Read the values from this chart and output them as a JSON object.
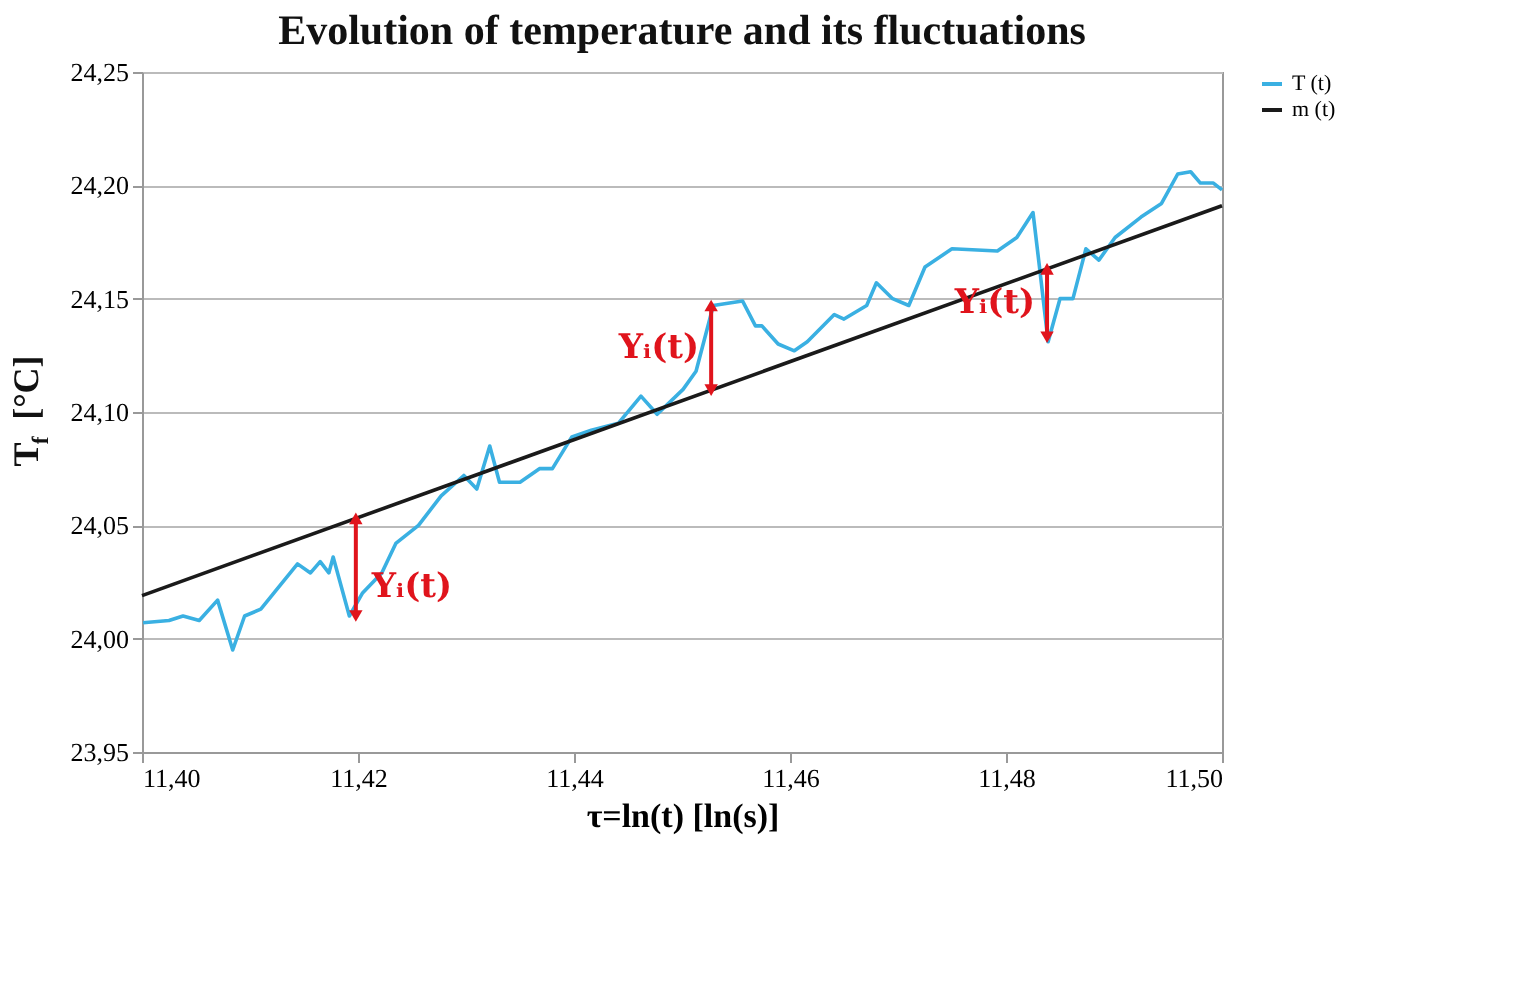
{
  "chart_data": {
    "type": "line",
    "title": "Evolution of temperature and its fluctuations",
    "xlabel": "τ=ln(t) [ln(s)]",
    "ylabel": "T$_{f}$ [°C]",
    "xlim": [
      11.4,
      11.5
    ],
    "xticks": [
      {
        "value": 11.4,
        "label": "11,40"
      },
      {
        "value": 11.42,
        "label": "11,42"
      },
      {
        "value": 11.44,
        "label": "11,44"
      },
      {
        "value": 11.46,
        "label": "11,46"
      },
      {
        "value": 11.48,
        "label": "11,48"
      },
      {
        "value": 11.5,
        "label": "11,50"
      }
    ],
    "ylim": [
      23.95,
      24.25
    ],
    "yticks": [
      {
        "value": 23.95,
        "label": "23,95"
      },
      {
        "value": 24.0,
        "label": "24,00"
      },
      {
        "value": 24.05,
        "label": "24,05"
      },
      {
        "value": 24.1,
        "label": "24,10"
      },
      {
        "value": 24.15,
        "label": "24,15"
      },
      {
        "value": 24.2,
        "label": "24,20"
      },
      {
        "value": 24.25,
        "label": "24,25"
      }
    ],
    "grid": "y",
    "legend": "right",
    "marker": "none",
    "line_style": "solid",
    "series": [
      {
        "name": "T (t)",
        "color": "#3ab0e2",
        "x": [
          11.4001,
          11.4025,
          11.4038,
          11.4053,
          11.407,
          11.4084,
          11.4095,
          11.411,
          11.4144,
          11.4156,
          11.4165,
          11.4173,
          11.4177,
          11.4192,
          11.4204,
          11.4222,
          11.4235,
          11.4256,
          11.4277,
          11.4298,
          11.431,
          11.4322,
          11.4331,
          11.435,
          11.4368,
          11.438,
          11.4398,
          11.4416,
          11.4441,
          11.4462,
          11.4477,
          11.4501,
          11.4513,
          11.4529,
          11.4556,
          11.4568,
          11.4574,
          11.4589,
          11.4604,
          11.4616,
          11.4641,
          11.465,
          11.4671,
          11.468,
          11.4695,
          11.471,
          11.4725,
          11.475,
          11.4792,
          11.481,
          11.4825,
          11.4831,
          11.4839,
          11.485,
          11.4862,
          11.4874,
          11.4886,
          11.4901,
          11.4925,
          11.4944,
          11.4959,
          11.4971,
          11.498,
          11.4992,
          11.5
        ],
        "values": [
          24.007,
          24.008,
          24.01,
          24.008,
          24.017,
          23.995,
          24.01,
          24.013,
          24.033,
          24.029,
          24.034,
          24.029,
          24.036,
          24.01,
          24.02,
          24.029,
          24.042,
          24.05,
          24.063,
          24.072,
          24.066,
          24.085,
          24.069,
          24.069,
          24.075,
          24.075,
          24.089,
          24.092,
          24.095,
          24.107,
          24.099,
          24.11,
          24.118,
          24.147,
          24.149,
          24.138,
          24.138,
          24.13,
          24.127,
          24.131,
          24.143,
          24.141,
          24.147,
          24.157,
          24.15,
          24.147,
          24.164,
          24.172,
          24.171,
          24.177,
          24.188,
          24.164,
          24.131,
          24.15,
          24.15,
          24.172,
          24.167,
          24.177,
          24.186,
          24.192,
          24.205,
          24.206,
          24.201,
          24.201,
          24.198
        ]
      },
      {
        "name": "m (t)",
        "color": "#1a1a1a",
        "x": [
          11.4,
          11.5
        ],
        "values": [
          24.019,
          24.191
        ]
      }
    ],
    "annotations": [
      {
        "text": "Yᵢ(t)",
        "x": 11.4198,
        "y": 24.01
      },
      {
        "text": "Yᵢ(t)",
        "x": 11.4527,
        "y": 24.147
      },
      {
        "text": "Yᵢ(t)",
        "x": 11.4838,
        "y": 24.133
      }
    ]
  }
}
